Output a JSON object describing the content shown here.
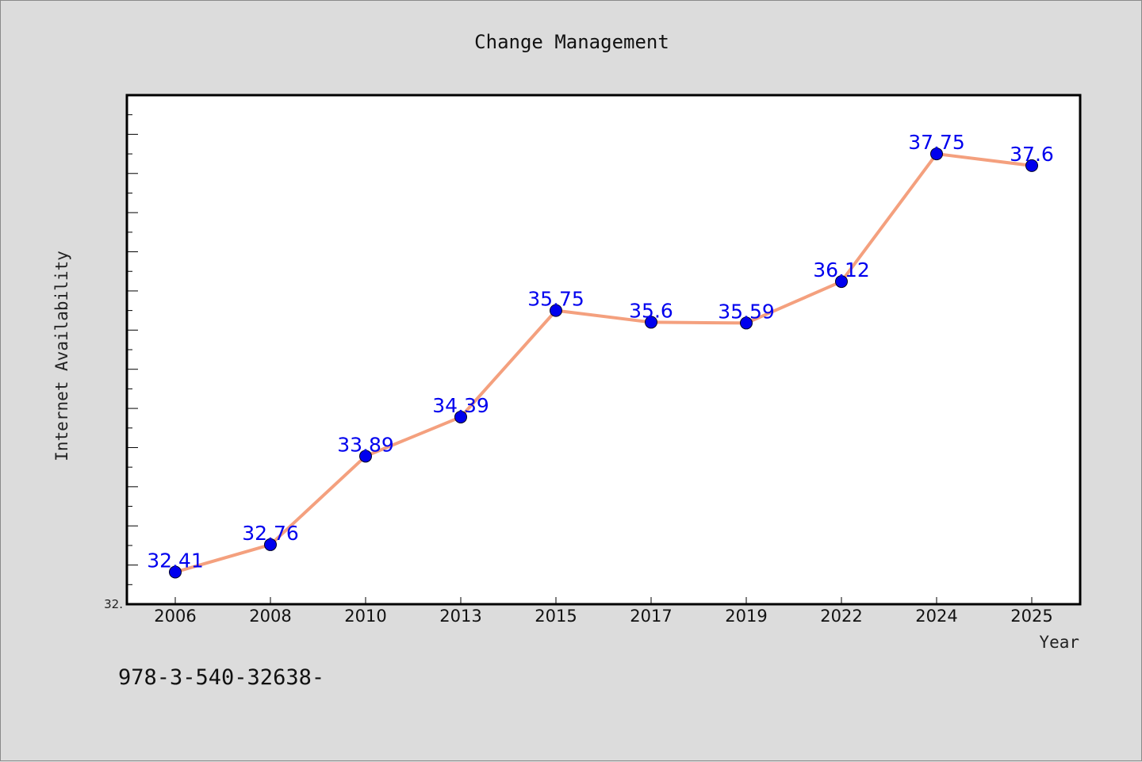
{
  "chart_data": {
    "type": "line",
    "title": "Change Management",
    "xlabel": "Year",
    "ylabel": "Internet Availability",
    "categories": [
      "2006",
      "2008",
      "2010",
      "2013",
      "2015",
      "2017",
      "2019",
      "2022",
      "2024",
      "2025"
    ],
    "series": [
      {
        "values": [
          32.41,
          32.76,
          33.89,
          34.39,
          35.75,
          35.6,
          35.59,
          36.12,
          37.75,
          37.6
        ],
        "point_labels": [
          "32.41",
          "32.76",
          "33.89",
          "34.39",
          "35.75",
          "35.6",
          "35.59",
          "36.12",
          "37.75",
          "37.6"
        ],
        "line_color": "#f4a07e",
        "marker_color": "#0000ee"
      }
    ],
    "ylim": [
      32.0,
      38.5
    ],
    "y_tick_labels": [
      "32."
    ],
    "grid": false,
    "legend": "none"
  },
  "footnote": "978-3-540-32638-",
  "colors": {
    "background": "#dcdcdc",
    "plot_background": "#ffffff",
    "label_color": "#0000ee"
  }
}
